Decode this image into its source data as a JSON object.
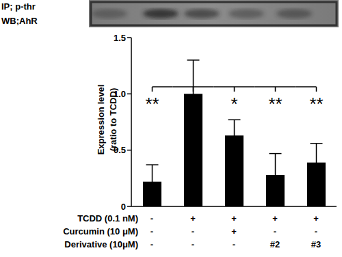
{
  "chart_data": {
    "type": "bar",
    "blot_labels": [
      "IP; p-thr",
      "WB;AhR"
    ],
    "y_label_lines": [
      "Expression level",
      "(ratio to TCDD)"
    ],
    "categories": [
      null,
      null,
      null,
      null,
      null
    ],
    "values": [
      0.22,
      1.0,
      0.63,
      0.28,
      0.39
    ],
    "errors": [
      0.15,
      0.3,
      0.14,
      0.19,
      0.17
    ],
    "significance": [
      "**",
      null,
      "*",
      "**",
      "**"
    ],
    "color": "#000000",
    "ylim": [
      0,
      1.5
    ],
    "yticks": [
      0,
      {
        "value": 0.5,
        "label": "0.5"
      },
      {
        "value": 1,
        "label": "1.0"
      },
      {
        "value": 1.5,
        "label": "1.5"
      }
    ],
    "conditions": [
      {
        "label": "TCDD (0.1 nM)",
        "values": [
          "-",
          "+",
          "+",
          "+",
          "+"
        ]
      },
      {
        "label": "Curcumin (10 μM)",
        "values": [
          "-",
          "-",
          "+",
          "-",
          "-"
        ]
      },
      {
        "label": "Derivative (10μM)",
        "values": [
          "-",
          "-",
          "-",
          "#2",
          "#3"
        ]
      }
    ]
  }
}
